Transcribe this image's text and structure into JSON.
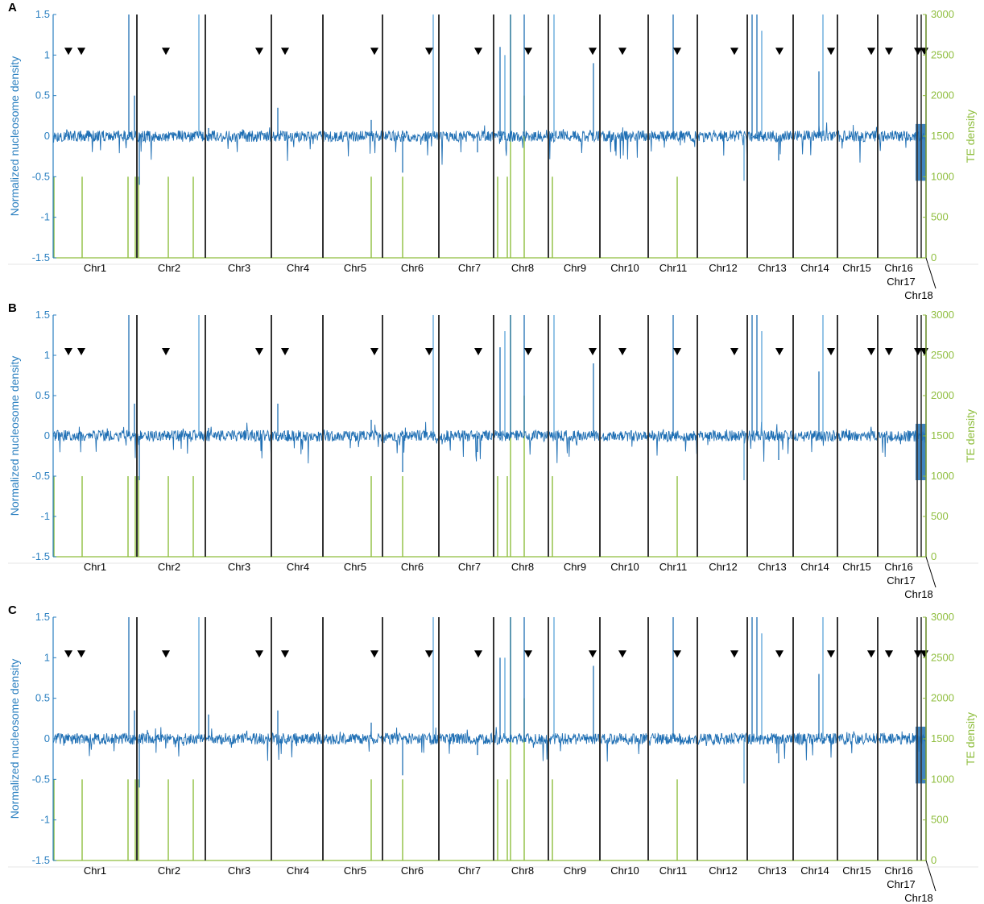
{
  "colors": {
    "nucleosome": "#1f6fb4",
    "nucleosome_light": "#5ba3d9",
    "te": "#8fbe3e",
    "boundary": "#333333",
    "marker": "#000000",
    "left_axis": "#2a7fc0",
    "right_axis": "#8fbe3e"
  },
  "chart_data": [
    {
      "panel": "A",
      "type": "line",
      "ylabel": "Normalized nucleosome density",
      "y2label": "TE density",
      "ylim": [
        -1.5,
        1.5
      ],
      "yticks": [
        "-1.5",
        "-1",
        "-0.5",
        "0",
        "0.5",
        "1",
        "1.5"
      ],
      "y2lim": [
        0,
        3000
      ],
      "y2ticks": [
        "0",
        "500",
        "1000",
        "1500",
        "2000",
        "2500",
        "3000"
      ],
      "chromosomes": [
        "Chr1",
        "Chr2",
        "Chr3",
        "Chr4",
        "Chr5",
        "Chr6",
        "Chr7",
        "Chr8",
        "Chr9",
        "Chr10",
        "Chr11",
        "Chr12",
        "Chr13",
        "Chr14",
        "Chr15",
        "Chr16",
        "Chr17",
        "Chr18"
      ],
      "series": [
        {
          "values": [
            0.03,
            -0.05,
            1.5,
            0.5,
            1.4,
            -0.6,
            0.02,
            1.5,
            0.1,
            0.35,
            -0.05,
            0.2,
            -0.45,
            1.5,
            -0.2,
            1.1,
            1.0,
            1.5,
            1.5,
            1.5,
            0.9,
            1.5,
            -0.55,
            1.5,
            1.5,
            1.3,
            -0.3,
            0.8,
            1.5,
            -0.6,
            0.05
          ]
        },
        {
          "values": [
            1000,
            1000,
            1000,
            1000,
            1000,
            1000,
            1000,
            1000,
            1000,
            1000,
            1000,
            1000,
            1000,
            1000,
            1000,
            1000,
            1000,
            3000,
            2000,
            1000,
            1000,
            1000,
            1000
          ]
        }
      ]
    },
    {
      "panel": "B",
      "type": "line",
      "ylabel": "Normalized nucleosome density",
      "y2label": "TE density",
      "ylim": [
        -1.5,
        1.5
      ],
      "yticks": [
        "-1.5",
        "-1",
        "-0.5",
        "0",
        "0.5",
        "1",
        "1.5"
      ],
      "y2lim": [
        0,
        3000
      ],
      "y2ticks": [
        "0",
        "500",
        "1000",
        "1500",
        "2000",
        "2500",
        "3000"
      ],
      "chromosomes": [
        "Chr1",
        "Chr2",
        "Chr3",
        "Chr4",
        "Chr5",
        "Chr6",
        "Chr7",
        "Chr8",
        "Chr9",
        "Chr10",
        "Chr11",
        "Chr12",
        "Chr13",
        "Chr14",
        "Chr15",
        "Chr16",
        "Chr17",
        "Chr18"
      ],
      "series": [
        {
          "values": [
            0.03,
            -0.05,
            1.5,
            0.4,
            1.5,
            -0.55,
            0.02,
            1.5,
            0.1,
            0.4,
            -0.05,
            0.2,
            -0.45,
            1.5,
            -0.2,
            1.1,
            1.3,
            1.5,
            1.5,
            1.5,
            0.9,
            1.5,
            -0.55,
            1.5,
            1.5,
            1.3,
            -0.3,
            0.8,
            1.5,
            -0.6,
            0.05
          ]
        },
        {
          "values": [
            1000,
            1000,
            1000,
            1000,
            1000,
            1000,
            1000,
            1000,
            1000,
            1000,
            1000,
            1000,
            1000,
            1000,
            1000,
            1000,
            1000,
            3000,
            2000,
            1000,
            1000,
            1000,
            1000
          ]
        }
      ]
    },
    {
      "panel": "C",
      "type": "line",
      "ylabel": "Normalized nucleosome density",
      "y2label": "TE density",
      "ylim": [
        -1.5,
        1.5
      ],
      "yticks": [
        "-1.5",
        "-1",
        "-0.5",
        "0",
        "0.5",
        "1",
        "1.5"
      ],
      "y2lim": [
        0,
        3000
      ],
      "y2ticks": [
        "0",
        "500",
        "1000",
        "1500",
        "2000",
        "2500",
        "3000"
      ],
      "chromosomes": [
        "Chr1",
        "Chr2",
        "Chr3",
        "Chr4",
        "Chr5",
        "Chr6",
        "Chr7",
        "Chr8",
        "Chr9",
        "Chr10",
        "Chr11",
        "Chr12",
        "Chr13",
        "Chr14",
        "Chr15",
        "Chr16",
        "Chr17",
        "Chr18"
      ],
      "series": [
        {
          "values": [
            0.03,
            -0.05,
            1.5,
            0.35,
            1.5,
            -0.6,
            0.02,
            1.5,
            0.3,
            0.35,
            -0.05,
            0.2,
            -0.45,
            1.5,
            -0.2,
            1.0,
            1.0,
            1.5,
            1.5,
            1.5,
            0.9,
            1.5,
            -0.55,
            1.5,
            1.5,
            1.3,
            -0.3,
            0.8,
            1.5,
            -0.6,
            0.05
          ]
        },
        {
          "values": [
            1000,
            1000,
            1000,
            1000,
            1000,
            1000,
            1000,
            1000,
            1000,
            1000,
            1000,
            1000,
            1000,
            1000,
            1000,
            1000,
            1000,
            3000,
            2000,
            1000,
            1000,
            1000,
            1000
          ]
        }
      ]
    }
  ]
}
